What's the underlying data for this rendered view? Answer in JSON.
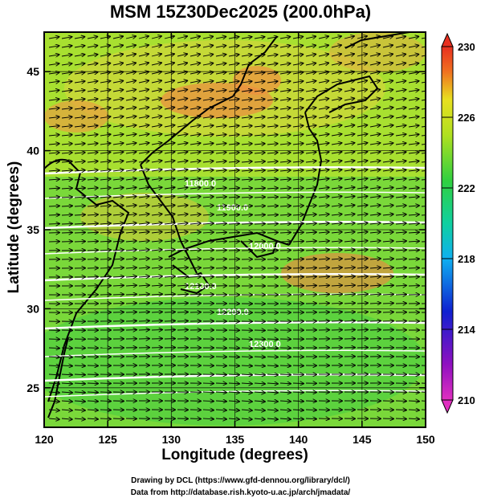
{
  "title": "MSM 15Z30Dec2025 (200.0hPa)",
  "xaxis": {
    "label": "Longitude (degrees)",
    "ticks": [
      "120",
      "125",
      "130",
      "135",
      "140",
      "145",
      "150"
    ]
  },
  "yaxis": {
    "label": "Latitude  (degrees)",
    "ticks": [
      "25",
      "30",
      "35",
      "40",
      "45"
    ]
  },
  "colorbar": {
    "ticks": [
      "230",
      "226",
      "222",
      "218",
      "214",
      "210"
    ]
  },
  "contours": [
    "11800.0",
    "11900.0",
    "12000.0",
    "12100.0",
    "12200.0",
    "12300.0"
  ],
  "credits": {
    "line1": "Drawing by DCL (https://www.gfd-dennou.org/library/dcl/)",
    "line2": "Data from http://database.rish.kyoto-u.ac.jp/arch/jmadata/"
  }
}
